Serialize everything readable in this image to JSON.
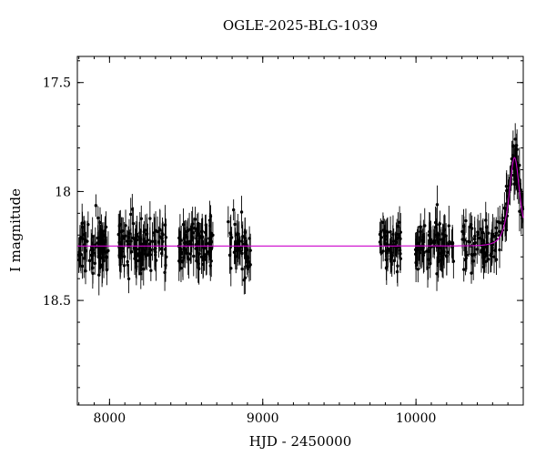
{
  "chart_data": {
    "type": "scatter",
    "title": "OGLE-2025-BLG-1039",
    "xlabel": "HJD - 2450000",
    "ylabel": "I magnitude",
    "xlim": [
      7790,
      10700
    ],
    "ylim": [
      17.38,
      18.98
    ],
    "y_inverted": true,
    "x_ticks": [
      8000,
      9000,
      10000
    ],
    "x_tick_labels": [
      "8000",
      "9000",
      "10000"
    ],
    "x_minor_step": 100,
    "y_ticks": [
      17.5,
      18.0,
      18.5
    ],
    "y_tick_labels": [
      "17.5",
      "18",
      "18.5"
    ],
    "y_minor_step": 0.1,
    "grid": false,
    "legend": "none",
    "baseline_mag": 18.25,
    "scatter_sigma": 0.055,
    "point_color": "#000000",
    "model_color": "#cc00cc",
    "seasons": [
      {
        "x0": 7800,
        "x1": 7995,
        "n": 85
      },
      {
        "x0": 8055,
        "x1": 8375,
        "n": 120
      },
      {
        "x0": 8450,
        "x1": 8675,
        "n": 95
      },
      {
        "x0": 8770,
        "x1": 8920,
        "n": 45
      },
      {
        "x0": 9760,
        "x1": 9905,
        "n": 55
      },
      {
        "x0": 9995,
        "x1": 10245,
        "n": 85
      },
      {
        "x0": 10300,
        "x1": 10600,
        "n": 95
      },
      {
        "x0": 10600,
        "x1": 10697,
        "n": 50
      }
    ],
    "model": {
      "type": "paczynski",
      "t0": 10643,
      "tE": 45,
      "u0": 0.87,
      "peak_mag": 17.85,
      "baseline_mag": 18.25
    }
  }
}
